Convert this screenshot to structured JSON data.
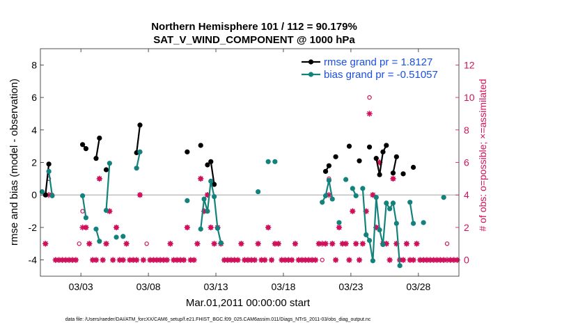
{
  "chart_data": {
    "type": "line",
    "title": [
      "Northern Hemisphere 101 / 112 = 90.179%",
      "SAT_V_WIND_COMPONENT @ 1000 hPa"
    ],
    "xlabel": "Mar.01,2011 00:00:00 start",
    "ylabel": "rmse and bias (model - observation)",
    "y2label": "# of obs: o=possible; ×=assimilated",
    "footer": "data file: /Users/raeder/DAI/ATM_forcXX/CAM6_setup/f.e21.FHIST_BGC.f09_025.CAM6assim.011/Diags_NTrS_2011-03/obs_diag_output.nc",
    "xlim": [
      0.0,
      31.0
    ],
    "ylim": [
      -5,
      9
    ],
    "y2lim": [
      -1,
      13
    ],
    "x_ticks": [
      3,
      8,
      13,
      18,
      23,
      28
    ],
    "x_tick_labels": [
      "03/03",
      "03/08",
      "03/13",
      "03/18",
      "03/23",
      "03/28"
    ],
    "y_ticks": [
      -4,
      -2,
      0,
      2,
      4,
      6,
      8
    ],
    "y2_ticks": [
      0,
      2,
      4,
      6,
      8,
      10,
      12
    ],
    "series": [
      {
        "name": "rmse grand pr = 1.8127",
        "color": "#000000",
        "points": [
          [
            0.375,
            0
          ],
          [
            0.625,
            1.9
          ],
          [
            3.125,
            3.1
          ],
          [
            3.375,
            2.85
          ],
          [
            4.125,
            2.25
          ],
          [
            4.375,
            3.5
          ],
          [
            4.875,
            1.55
          ],
          [
            7.125,
            2.6
          ],
          [
            7.375,
            4.3
          ],
          [
            10.875,
            2.65
          ],
          [
            11.875,
            3.05
          ],
          [
            12.375,
            1.85
          ],
          [
            12.625,
            2.05
          ],
          [
            12.875,
            0.65
          ],
          [
            21.125,
            1.45
          ],
          [
            21.375,
            1.8
          ],
          [
            21.875,
            2.35
          ],
          [
            22.875,
            3.0
          ],
          [
            23.625,
            2.1
          ],
          [
            24.375,
            2.95
          ],
          [
            24.875,
            2.25
          ],
          [
            25.125,
            1.25
          ],
          [
            25.375,
            2.65
          ],
          [
            25.625,
            3.05
          ],
          [
            26.125,
            1.35
          ],
          [
            26.375,
            2.35
          ],
          [
            26.875,
            1.3
          ],
          [
            27.625,
            1.7
          ]
        ]
      },
      {
        "name": "bias grand pr = -0.51057",
        "color": "#13827c",
        "points": [
          [
            0.125,
            0.2
          ],
          [
            0.625,
            1.45
          ],
          [
            0.875,
            -0.05
          ],
          [
            3.125,
            -0.05
          ],
          [
            3.375,
            -1.4
          ],
          [
            4.125,
            -2.1
          ],
          [
            4.375,
            -2.85
          ],
          [
            4.875,
            -0.95
          ],
          [
            5.125,
            1.95
          ],
          [
            5.625,
            -2.6
          ],
          [
            6.125,
            -2.55
          ],
          [
            7.125,
            1.65
          ],
          [
            7.375,
            2.65
          ],
          [
            10.875,
            -0.35
          ],
          [
            11.875,
            -2.1
          ],
          [
            12.125,
            -0.25
          ],
          [
            12.375,
            -1.0
          ],
          [
            12.625,
            0.85
          ],
          [
            12.875,
            -0.1
          ],
          [
            13.125,
            -2.05
          ],
          [
            13.375,
            -2.95
          ],
          [
            16.125,
            0.2
          ],
          [
            16.875,
            2.05
          ],
          [
            17.375,
            2.05
          ],
          [
            20.875,
            -0.45
          ],
          [
            21.125,
            -0.05
          ],
          [
            21.375,
            0.9
          ],
          [
            21.625,
            -0.25
          ],
          [
            22.125,
            -1.7
          ],
          [
            22.625,
            0.95
          ],
          [
            23.125,
            0.4
          ],
          [
            23.375,
            -0.05
          ],
          [
            23.875,
            0.4
          ],
          [
            24.125,
            -2.45
          ],
          [
            24.375,
            -2.8
          ],
          [
            24.625,
            -4.05
          ],
          [
            24.875,
            -0.15
          ],
          [
            25.125,
            -2.15
          ],
          [
            25.375,
            -3.05
          ],
          [
            25.625,
            -0.5
          ],
          [
            25.875,
            -0.85
          ],
          [
            26.125,
            -0.5
          ],
          [
            26.375,
            -1.75
          ],
          [
            26.625,
            -4.35
          ],
          [
            27.375,
            -0.45
          ],
          [
            27.625,
            -1.75
          ],
          [
            28.375,
            -1.7
          ],
          [
            29.875,
            -0.15
          ]
        ]
      }
    ],
    "obs_possible": [
      [
        0.375,
        1.0
      ],
      [
        0.625,
        5.0
      ],
      [
        0.875,
        4.0
      ],
      [
        1.125,
        0.0
      ],
      [
        1.375,
        0.0
      ],
      [
        1.625,
        0.0
      ],
      [
        1.875,
        0.0
      ],
      [
        2.125,
        0.0
      ],
      [
        2.375,
        0.0
      ],
      [
        2.625,
        0.0
      ],
      [
        2.875,
        1.0
      ],
      [
        3.125,
        3.0
      ],
      [
        3.375,
        2.0
      ],
      [
        3.625,
        1.0
      ],
      [
        3.875,
        0.0
      ],
      [
        4.125,
        0.0
      ],
      [
        4.375,
        5.0
      ],
      [
        4.625,
        0.0
      ],
      [
        4.875,
        1.0
      ],
      [
        5.125,
        3.0
      ],
      [
        5.375,
        0.0
      ],
      [
        5.625,
        2.0
      ],
      [
        5.875,
        0.0
      ],
      [
        6.125,
        0.0
      ],
      [
        6.375,
        1.0
      ],
      [
        6.625,
        0.0
      ],
      [
        6.875,
        0.0
      ],
      [
        7.125,
        0.0
      ],
      [
        7.375,
        4.0
      ],
      [
        7.625,
        0.0
      ],
      [
        7.875,
        1.0
      ],
      [
        8.125,
        0.0
      ],
      [
        8.375,
        0.0
      ],
      [
        8.625,
        0.0
      ],
      [
        8.875,
        0.0
      ],
      [
        9.125,
        0.0
      ],
      [
        9.375,
        0.0
      ],
      [
        9.625,
        1.0
      ],
      [
        9.875,
        0.0
      ],
      [
        10.125,
        0.0
      ],
      [
        10.375,
        0.0
      ],
      [
        10.625,
        0.0
      ],
      [
        10.875,
        2.0
      ],
      [
        11.125,
        0.0
      ],
      [
        11.375,
        0.0
      ],
      [
        11.625,
        1.0
      ],
      [
        11.875,
        5.0
      ],
      [
        12.125,
        3.0
      ],
      [
        12.375,
        4.0
      ],
      [
        12.625,
        2.0
      ],
      [
        12.875,
        1.0
      ],
      [
        13.125,
        2.0
      ],
      [
        13.375,
        1.0
      ],
      [
        13.625,
        0.0
      ],
      [
        13.875,
        0.0
      ],
      [
        14.125,
        0.0
      ],
      [
        14.375,
        0.0
      ],
      [
        14.625,
        0.0
      ],
      [
        14.875,
        1.0
      ],
      [
        15.125,
        0.0
      ],
      [
        15.375,
        0.0
      ],
      [
        15.625,
        0.0
      ],
      [
        15.875,
        0.0
      ],
      [
        16.125,
        1.0
      ],
      [
        16.375,
        0.0
      ],
      [
        16.625,
        0.0
      ],
      [
        16.875,
        2.0
      ],
      [
        17.125,
        0.0
      ],
      [
        17.375,
        1.0
      ],
      [
        17.625,
        1.0
      ],
      [
        17.875,
        0.0
      ],
      [
        18.125,
        0.0
      ],
      [
        18.375,
        0.0
      ],
      [
        18.625,
        0.0
      ],
      [
        18.875,
        1.0
      ],
      [
        19.125,
        0.0
      ],
      [
        19.375,
        0.0
      ],
      [
        19.625,
        0.0
      ],
      [
        19.875,
        0.0
      ],
      [
        20.125,
        0.0
      ],
      [
        20.375,
        0.0
      ],
      [
        20.625,
        1.0
      ],
      [
        20.875,
        0.0
      ],
      [
        21.125,
        1.0
      ],
      [
        21.375,
        5.0
      ],
      [
        21.625,
        1.0
      ],
      [
        21.875,
        0.0
      ],
      [
        22.125,
        2.0
      ],
      [
        22.375,
        1.0
      ],
      [
        22.625,
        1.0
      ],
      [
        22.875,
        0.0
      ],
      [
        23.125,
        3.0
      ],
      [
        23.375,
        1.0
      ],
      [
        23.625,
        0.0
      ],
      [
        23.875,
        1.0
      ],
      [
        24.125,
        3.0
      ],
      [
        24.375,
        10.0
      ],
      [
        24.625,
        4.0
      ],
      [
        24.875,
        2.0
      ],
      [
        25.125,
        6.0
      ],
      [
        25.375,
        1.0
      ],
      [
        25.625,
        1.0
      ],
      [
        25.875,
        0.0
      ],
      [
        26.125,
        5.0
      ],
      [
        26.375,
        1.0
      ],
      [
        26.625,
        0.0
      ],
      [
        26.875,
        0.0
      ],
      [
        27.125,
        1.0
      ],
      [
        27.375,
        0.0
      ],
      [
        27.625,
        0.0
      ],
      [
        27.875,
        1.0
      ],
      [
        28.125,
        0.0
      ],
      [
        28.375,
        0.0
      ],
      [
        28.625,
        0.0
      ],
      [
        28.875,
        0.0
      ],
      [
        29.125,
        0.0
      ],
      [
        29.375,
        0.0
      ],
      [
        29.625,
        0.0
      ],
      [
        29.875,
        0.0
      ],
      [
        30.125,
        1.0
      ],
      [
        30.375,
        0.0
      ],
      [
        30.625,
        0.0
      ],
      [
        30.875,
        0.0
      ]
    ],
    "obs_assimilated": [
      [
        0.375,
        1.0
      ],
      [
        0.625,
        4.0
      ],
      [
        1.125,
        0.0
      ],
      [
        1.375,
        0.0
      ],
      [
        1.625,
        0.0
      ],
      [
        1.875,
        0.0
      ],
      [
        2.125,
        0.0
      ],
      [
        2.375,
        0.0
      ],
      [
        2.625,
        0.0
      ],
      [
        3.125,
        2.0
      ],
      [
        3.375,
        2.0
      ],
      [
        3.625,
        1.0
      ],
      [
        3.875,
        0.0
      ],
      [
        4.125,
        0.0
      ],
      [
        4.375,
        5.0
      ],
      [
        4.625,
        0.0
      ],
      [
        4.875,
        1.0
      ],
      [
        5.125,
        3.0
      ],
      [
        5.375,
        0.0
      ],
      [
        5.625,
        2.0
      ],
      [
        5.875,
        0.0
      ],
      [
        6.125,
        0.0
      ],
      [
        6.375,
        1.0
      ],
      [
        6.625,
        0.0
      ],
      [
        6.875,
        0.0
      ],
      [
        7.125,
        0.0
      ],
      [
        7.375,
        4.0
      ],
      [
        7.625,
        0.0
      ],
      [
        8.125,
        0.0
      ],
      [
        8.375,
        0.0
      ],
      [
        8.625,
        0.0
      ],
      [
        8.875,
        0.0
      ],
      [
        9.125,
        0.0
      ],
      [
        9.375,
        0.0
      ],
      [
        9.625,
        1.0
      ],
      [
        9.875,
        0.0
      ],
      [
        10.125,
        0.0
      ],
      [
        10.375,
        0.0
      ],
      [
        10.625,
        0.0
      ],
      [
        10.875,
        2.0
      ],
      [
        11.125,
        0.0
      ],
      [
        11.375,
        0.0
      ],
      [
        11.625,
        1.0
      ],
      [
        11.875,
        5.0
      ],
      [
        12.125,
        3.0
      ],
      [
        12.375,
        4.0
      ],
      [
        12.625,
        2.0
      ],
      [
        12.875,
        1.0
      ],
      [
        13.125,
        2.0
      ],
      [
        13.375,
        1.0
      ],
      [
        13.625,
        0.0
      ],
      [
        13.875,
        0.0
      ],
      [
        14.125,
        0.0
      ],
      [
        14.375,
        0.0
      ],
      [
        14.625,
        0.0
      ],
      [
        14.875,
        1.0
      ],
      [
        15.125,
        0.0
      ],
      [
        15.375,
        0.0
      ],
      [
        15.625,
        0.0
      ],
      [
        15.875,
        0.0
      ],
      [
        16.125,
        1.0
      ],
      [
        16.375,
        0.0
      ],
      [
        16.625,
        0.0
      ],
      [
        16.875,
        2.0
      ],
      [
        17.125,
        0.0
      ],
      [
        17.375,
        1.0
      ],
      [
        17.625,
        1.0
      ],
      [
        17.875,
        0.0
      ],
      [
        18.125,
        0.0
      ],
      [
        18.375,
        0.0
      ],
      [
        18.625,
        0.0
      ],
      [
        18.875,
        1.0
      ],
      [
        19.125,
        0.0
      ],
      [
        19.375,
        0.0
      ],
      [
        19.625,
        0.0
      ],
      [
        19.875,
        0.0
      ],
      [
        20.125,
        0.0
      ],
      [
        20.375,
        0.0
      ],
      [
        20.625,
        1.0
      ],
      [
        20.875,
        1.0
      ],
      [
        21.125,
        1.0
      ],
      [
        21.375,
        4.0
      ],
      [
        21.625,
        1.0
      ],
      [
        21.875,
        0.0
      ],
      [
        22.125,
        2.0
      ],
      [
        22.375,
        1.0
      ],
      [
        22.625,
        1.0
      ],
      [
        22.875,
        0.0
      ],
      [
        23.125,
        3.0
      ],
      [
        23.375,
        1.0
      ],
      [
        23.625,
        0.0
      ],
      [
        23.875,
        1.0
      ],
      [
        24.125,
        3.0
      ],
      [
        24.375,
        9.0
      ],
      [
        24.625,
        4.0
      ],
      [
        24.875,
        2.0
      ],
      [
        25.125,
        6.0
      ],
      [
        25.375,
        1.0
      ],
      [
        25.625,
        1.0
      ],
      [
        25.875,
        0.0
      ],
      [
        26.125,
        5.0
      ],
      [
        26.375,
        1.0
      ],
      [
        26.625,
        0.0
      ],
      [
        26.875,
        0.0
      ],
      [
        27.125,
        1.0
      ],
      [
        27.375,
        0.0
      ],
      [
        27.625,
        0.0
      ],
      [
        27.875,
        1.0
      ],
      [
        28.125,
        0.0
      ],
      [
        28.375,
        0.0
      ],
      [
        28.625,
        0.0
      ],
      [
        28.875,
        0.0
      ],
      [
        29.125,
        0.0
      ],
      [
        29.375,
        0.0
      ],
      [
        29.625,
        0.0
      ],
      [
        29.875,
        0.0
      ],
      [
        30.125,
        0.0
      ],
      [
        30.375,
        0.0
      ],
      [
        30.625,
        0.0
      ],
      [
        30.875,
        0.0
      ]
    ],
    "obs_color": "#d0105a",
    "zero_line_color": "#b4b4b4",
    "legend_location": "top-right"
  }
}
